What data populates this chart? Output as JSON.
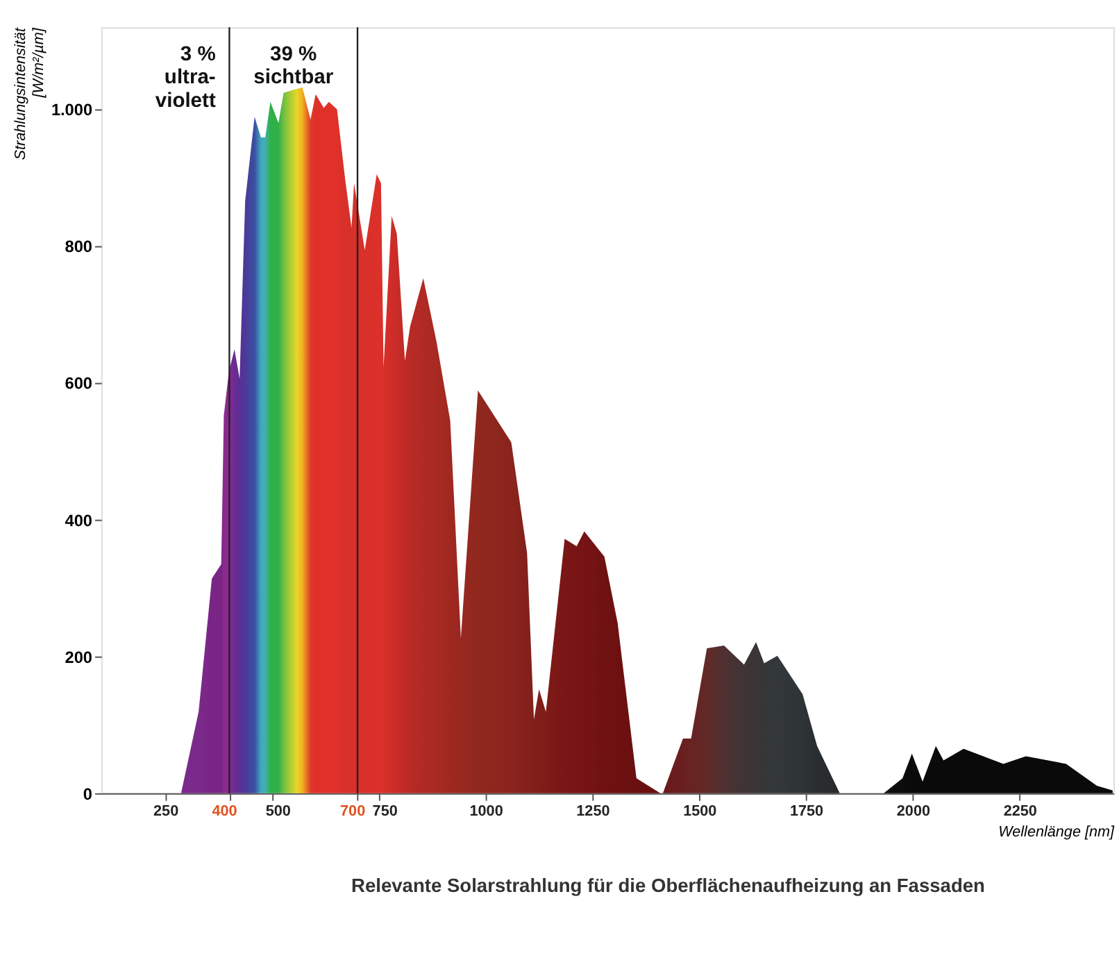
{
  "chart_data": {
    "type": "area",
    "ylabel": "Strahlungsintensität\n[W/m²/µm]",
    "xlabel": "Wellenlänge [nm]",
    "xlim": [
      100,
      2470
    ],
    "ylim": [
      0,
      1120
    ],
    "xticks": [
      250,
      400,
      500,
      700,
      750,
      1000,
      1250,
      1500,
      1750,
      2000,
      2250
    ],
    "yticks": [
      0,
      200,
      400,
      600,
      800,
      {
        "value": 1000,
        "label": "1.000"
      }
    ],
    "grid": false,
    "ref_lines": [
      {
        "axis": "x",
        "value": 400,
        "color": "#222222"
      },
      {
        "axis": "x",
        "value": 700,
        "color": "#222222"
      }
    ],
    "annotations": [
      "3 %\nultra-\nviolett",
      "39 %\nsichtbar",
      "Relevante Solarstrahlung für die Oberflächenaufheizung an Fassaden"
    ],
    "series": [
      {
        "x": [
          287,
          328,
          359,
          381,
          387,
          399,
          412,
          424,
          437,
          459,
          474,
          484,
          496,
          515,
          527,
          558,
          571,
          590,
          602,
          621,
          633,
          652,
          671,
          686,
          692,
          717,
          745,
          755,
          761,
          780,
          792,
          811,
          823,
          854,
          885,
          917,
          942,
          982,
          1060,
          1097,
          1113,
          1125,
          1141,
          1185,
          1213,
          1231,
          1278,
          1309,
          1353,
          1409,
          1415,
          1462,
          1481,
          1518,
          1558,
          1605,
          1633,
          1652,
          1683,
          1742,
          1776,
          1829,
          1932,
          1976,
          1998,
          2023,
          2054,
          2072,
          2119,
          2212,
          2265,
          2359,
          2431,
          2468
        ],
        "values": [
          0,
          119,
          314,
          335,
          552,
          617,
          649,
          606,
          866,
          989,
          959,
          959,
          1011,
          980,
          1024,
          1030,
          1032,
          985,
          1022,
          1002,
          1011,
          1000,
          898,
          827,
          892,
          794,
          905,
          892,
          623,
          844,
          818,
          632,
          682,
          753,
          660,
          545,
          227,
          589,
          513,
          351,
          108,
          152,
          119,
          372,
          361,
          383,
          346,
          249,
          22,
          0,
          0,
          80,
          80,
          212,
          216,
          188,
          221,
          190,
          201,
          145,
          69,
          0,
          0,
          22,
          58,
          17,
          69,
          48,
          65,
          43,
          54,
          43,
          11,
          4
        ],
        "colors": [
          "#7a2a8a",
          "#7a2a8a",
          "#7a2585",
          "#7a2585",
          "#8a2a90",
          "#8a2a90",
          "#6a2c95",
          "#5b2f93",
          "#4a3a9a",
          "#3a4fa0",
          "#3fa8c0",
          "#40b0b0",
          "#30b048",
          "#30b048",
          "#70c040",
          "#e8d62a",
          "#f0b020",
          "#e03a28",
          "#e0302a",
          "#e0302a",
          "#e0302a",
          "#e0302a",
          "#d8302a",
          "#d8302a",
          "#d8302a",
          "#d8302a",
          "#dc302a",
          "#dc302a",
          "#d8302a",
          "#d02c28",
          "#c82c28",
          "#c02a26",
          "#b82a26",
          "#b02a24",
          "#a82a22",
          "#a02820",
          "#982820",
          "#90281e",
          "#8a241c",
          "#84201c",
          "#80201a",
          "#801e1a",
          "#7e1c18",
          "#7a1616",
          "#781414",
          "#761414",
          "#701212",
          "#6e1010",
          "#6a1010",
          "#681010",
          "#6a1a18",
          "#6a2020",
          "#6a2222",
          "#602a28",
          "#503030",
          "#403434",
          "#3a3536",
          "#363638",
          "#33383a",
          "#2e3436",
          "#2a2e30",
          "#262a2c",
          "#101010",
          "#0c0c0c",
          "#0a0a0a",
          "#0a0a0a",
          "#0a0a0a",
          "#0a0a0a",
          "#0a0a0a",
          "#0a0a0a",
          "#0a0a0a",
          "#0a0a0a",
          "#0a0a0a",
          "#0a0a0a"
        ]
      }
    ]
  }
}
